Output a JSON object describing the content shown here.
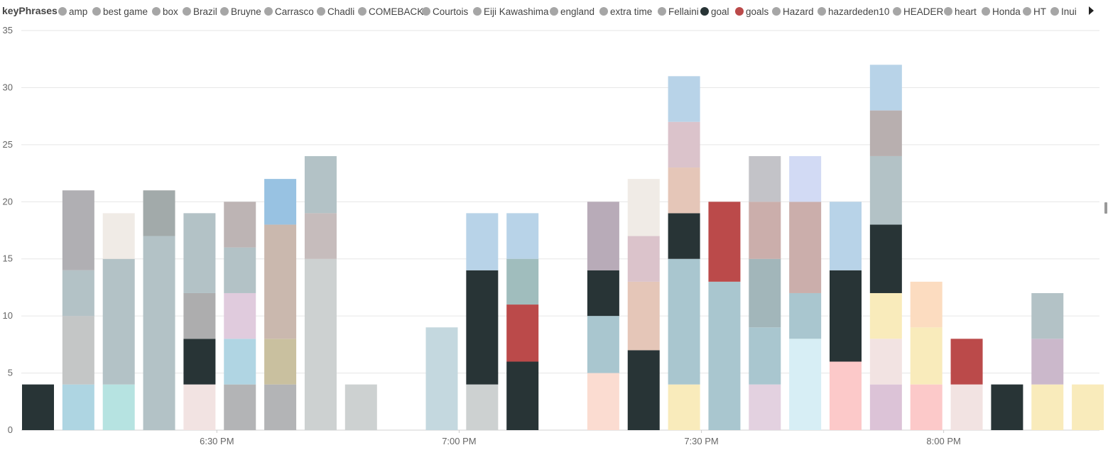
{
  "legend": {
    "title": "keyPhrases",
    "items": [
      {
        "label": "amp",
        "color": "#a6a6a6"
      },
      {
        "label": "best game",
        "color": "#a6a6a6"
      },
      {
        "label": "box",
        "color": "#a6a6a6"
      },
      {
        "label": "Brazil",
        "color": "#a6a6a6"
      },
      {
        "label": "Bruyne",
        "color": "#a6a6a6"
      },
      {
        "label": "Carrasco",
        "color": "#a6a6a6"
      },
      {
        "label": "Chadli",
        "color": "#a6a6a6"
      },
      {
        "label": "COMEBACK",
        "color": "#a6a6a6"
      },
      {
        "label": "Courtois",
        "color": "#a6a6a6"
      },
      {
        "label": "Eiji Kawashima",
        "color": "#a6a6a6"
      },
      {
        "label": "england",
        "color": "#a6a6a6"
      },
      {
        "label": "extra time",
        "color": "#a6a6a6"
      },
      {
        "label": "Fellaini",
        "color": "#a6a6a6"
      },
      {
        "label": "goal",
        "color": "#283436"
      },
      {
        "label": "goals",
        "color": "#bb4a4a"
      },
      {
        "label": "Hazard",
        "color": "#a6a6a6"
      },
      {
        "label": "hazardeden10",
        "color": "#a6a6a6"
      },
      {
        "label": "HEADER",
        "color": "#a6a6a6"
      },
      {
        "label": "heart",
        "color": "#a6a6a6"
      },
      {
        "label": "Honda",
        "color": "#a6a6a6"
      },
      {
        "label": "HT",
        "color": "#a6a6a6"
      },
      {
        "label": "Inui",
        "color": "#a6a6a6"
      }
    ]
  },
  "chart_data": {
    "type": "bar",
    "stacked": true,
    "legend_title": "keyPhrases",
    "ylim": [
      0,
      35
    ],
    "yticks": [
      0,
      5,
      10,
      15,
      20,
      25,
      30,
      35
    ],
    "xtick_labels": [
      "6:30 PM",
      "7:00 PM",
      "7:30 PM",
      "8:00 PM"
    ],
    "xtick_slots": [
      4.5,
      10.5,
      16.5,
      22.5
    ],
    "grid": true,
    "legend_position": "top",
    "bars": [
      {
        "slot": 0,
        "segments": [
          {
            "value": 4,
            "color": "#283436"
          }
        ]
      },
      {
        "slot": 1,
        "segments": [
          {
            "value": 4,
            "color": "#aed5e2"
          },
          {
            "value": 6,
            "color": "#c4c6c6"
          },
          {
            "value": 4,
            "color": "#b3c2c6"
          },
          {
            "value": 7,
            "color": "#b0afb3"
          }
        ]
      },
      {
        "slot": 2,
        "segments": [
          {
            "value": 4,
            "color": "#b6e3e1"
          },
          {
            "value": 11,
            "color": "#b3c2c6"
          },
          {
            "value": 4,
            "color": "#f0ebe6"
          }
        ]
      },
      {
        "slot": 3,
        "segments": [
          {
            "value": 17,
            "color": "#b3c2c6"
          },
          {
            "value": 4,
            "color": "#a2aaaa"
          }
        ]
      },
      {
        "slot": 4,
        "segments": [
          {
            "value": 4,
            "color": "#f2e3e2"
          },
          {
            "value": 4,
            "color": "#283436"
          },
          {
            "value": 4,
            "color": "#adadae"
          },
          {
            "value": 7,
            "color": "#b3c2c6"
          }
        ]
      },
      {
        "slot": 5,
        "segments": [
          {
            "value": 4,
            "color": "#b3b4b6"
          },
          {
            "value": 4,
            "color": "#b0d5e3"
          },
          {
            "value": 4,
            "color": "#e0cbdd"
          },
          {
            "value": 4,
            "color": "#b3c2c6"
          },
          {
            "value": 4,
            "color": "#bdb4b4"
          }
        ]
      },
      {
        "slot": 6,
        "segments": [
          {
            "value": 4,
            "color": "#b3b4b6"
          },
          {
            "value": 4,
            "color": "#c9c09f"
          },
          {
            "value": 10,
            "color": "#cab8ae"
          },
          {
            "value": 4,
            "color": "#98c2e2"
          }
        ]
      },
      {
        "slot": 7,
        "segments": [
          {
            "value": 15,
            "color": "#cdd1d1"
          },
          {
            "value": 4,
            "color": "#c6bcbc"
          },
          {
            "value": 5,
            "color": "#b3c2c6"
          }
        ]
      },
      {
        "slot": 8,
        "segments": [
          {
            "value": 4,
            "color": "#cdd1d1"
          }
        ]
      },
      {
        "slot": 10,
        "segments": [
          {
            "value": 9,
            "color": "#c4d8df"
          }
        ]
      },
      {
        "slot": 11,
        "segments": [
          {
            "value": 4,
            "color": "#cdd1d1"
          },
          {
            "value": 10,
            "color": "#283436"
          },
          {
            "value": 5,
            "color": "#b8d3e8"
          }
        ]
      },
      {
        "slot": 12,
        "segments": [
          {
            "value": 6,
            "color": "#283436"
          },
          {
            "value": 5,
            "color": "#bb4a4a"
          },
          {
            "value": 4,
            "color": "#a0bdbd"
          },
          {
            "value": 4,
            "color": "#b8d3e8"
          }
        ]
      },
      {
        "slot": 14,
        "segments": [
          {
            "value": 5,
            "color": "#fbdcd1"
          },
          {
            "value": 5,
            "color": "#a9c6cf"
          },
          {
            "value": 4,
            "color": "#283436"
          },
          {
            "value": 6,
            "color": "#b8abb8"
          }
        ]
      },
      {
        "slot": 15,
        "segments": [
          {
            "value": 7,
            "color": "#283436"
          },
          {
            "value": 6,
            "color": "#e5c6b8"
          },
          {
            "value": 4,
            "color": "#dbc3cb"
          },
          {
            "value": 5,
            "color": "#f0ebe6"
          }
        ]
      },
      {
        "slot": 16,
        "segments": [
          {
            "value": 4,
            "color": "#f9ebbb"
          },
          {
            "value": 11,
            "color": "#a9c6cf"
          },
          {
            "value": 4,
            "color": "#283436"
          },
          {
            "value": 4,
            "color": "#e5c6b8"
          },
          {
            "value": 4,
            "color": "#dbc3cb"
          },
          {
            "value": 4,
            "color": "#b8d3e8"
          }
        ]
      },
      {
        "slot": 17,
        "segments": [
          {
            "value": 13,
            "color": "#a9c6cf"
          },
          {
            "value": 7,
            "color": "#bb4a4a"
          }
        ]
      },
      {
        "slot": 18,
        "segments": [
          {
            "value": 4,
            "color": "#e3d1e0"
          },
          {
            "value": 5,
            "color": "#a9c6cf"
          },
          {
            "value": 6,
            "color": "#a2b6ba"
          },
          {
            "value": 5,
            "color": "#cbaeab"
          },
          {
            "value": 4,
            "color": "#c3c3c8"
          }
        ]
      },
      {
        "slot": 19,
        "segments": [
          {
            "value": 8,
            "color": "#d7eef5"
          },
          {
            "value": 4,
            "color": "#a9c6cf"
          },
          {
            "value": 8,
            "color": "#cbaeab"
          },
          {
            "value": 4,
            "color": "#d2daf4"
          }
        ]
      },
      {
        "slot": 20,
        "segments": [
          {
            "value": 6,
            "color": "#fcc9c9"
          },
          {
            "value": 8,
            "color": "#283436"
          },
          {
            "value": 6,
            "color": "#b8d3e8"
          }
        ]
      },
      {
        "slot": 21,
        "segments": [
          {
            "value": 4,
            "color": "#dcc3d7"
          },
          {
            "value": 4,
            "color": "#f2e3e2"
          },
          {
            "value": 4,
            "color": "#f9ebbb"
          },
          {
            "value": 6,
            "color": "#283436"
          },
          {
            "value": 6,
            "color": "#b3c2c6"
          },
          {
            "value": 4,
            "color": "#b8afaf"
          },
          {
            "value": 4,
            "color": "#b8d3e8"
          }
        ]
      },
      {
        "slot": 22,
        "segments": [
          {
            "value": 4,
            "color": "#fcc9c9"
          },
          {
            "value": 5,
            "color": "#f9ebbb"
          },
          {
            "value": 4,
            "color": "#fcdcc0"
          }
        ]
      },
      {
        "slot": 23,
        "segments": [
          {
            "value": 4,
            "color": "#f2e3e2"
          },
          {
            "value": 4,
            "color": "#bb4a4a"
          }
        ]
      },
      {
        "slot": 24,
        "segments": [
          {
            "value": 4,
            "color": "#283436"
          }
        ]
      },
      {
        "slot": 25,
        "segments": [
          {
            "value": 4,
            "color": "#f9ebbb"
          },
          {
            "value": 4,
            "color": "#cbb8cb"
          },
          {
            "value": 4,
            "color": "#b3c2c6"
          }
        ]
      },
      {
        "slot": 26,
        "segments": [
          {
            "value": 4,
            "color": "#f9ebbb"
          }
        ]
      }
    ]
  }
}
